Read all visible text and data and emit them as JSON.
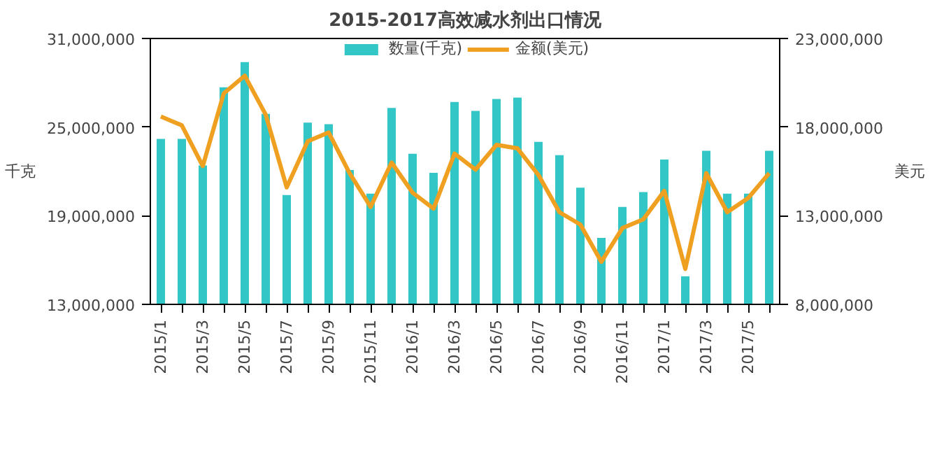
{
  "chart_data": {
    "type": "bar",
    "title": "2015-2017高效减水剂出口情况",
    "categories": [
      "2015/1",
      null,
      "2015/3",
      null,
      "2015/5",
      null,
      "2015/7",
      null,
      "2015/9",
      null,
      "2015/11",
      null,
      "2016/1",
      null,
      "2016/3",
      null,
      "2016/5",
      null,
      "2016/7",
      null,
      "2016/9",
      null,
      "2016/11",
      null,
      "2017/1",
      null,
      "2017/3",
      null,
      "2017/5",
      null
    ],
    "ylabel": "千克",
    "y2label": "美元",
    "ylim": [
      13000000,
      31000000
    ],
    "yticks": [
      {
        "value": 13000000,
        "label": "13,000,000"
      },
      {
        "value": 19000000,
        "label": "19,000,000"
      },
      {
        "value": 25000000,
        "label": "25,000,000"
      },
      {
        "value": 31000000,
        "label": "31,000,000"
      }
    ],
    "y2lim": [
      8000000,
      23000000
    ],
    "y2ticks": [
      {
        "value": 8000000,
        "label": "8,000,000"
      },
      {
        "value": 13000000,
        "label": "13,000,000"
      },
      {
        "value": 18000000,
        "label": "18,000,000"
      },
      {
        "value": 23000000,
        "label": "23,000,000"
      }
    ],
    "legend": "top",
    "grid": false,
    "series": [
      {
        "name": "数量(千克)",
        "color": "#33c6c6",
        "values": [
          24200000,
          24200000,
          22400000,
          27700000,
          29400000,
          25900000,
          20400000,
          25300000,
          25200000,
          22100000,
          20500000,
          26300000,
          23200000,
          21900000,
          26700000,
          26100000,
          26900000,
          27000000,
          24000000,
          23100000,
          20900000,
          17500000,
          19600000,
          20600000,
          22800000,
          14900000,
          23400000,
          20500000,
          20500000,
          23400000
        ]
      },
      {
        "name": "金额(美元)",
        "type": "line",
        "axis": "y2",
        "color": "#f0a020",
        "values": [
          18600000,
          18100000,
          15800000,
          19900000,
          20900000,
          18700000,
          14600000,
          17200000,
          17700000,
          15400000,
          13500000,
          16000000,
          14300000,
          13400000,
          16500000,
          15600000,
          17000000,
          16800000,
          15300000,
          13200000,
          12500000,
          10400000,
          12300000,
          12800000,
          14400000,
          10000000,
          15400000,
          13200000,
          14000000,
          15400000
        ]
      }
    ]
  }
}
